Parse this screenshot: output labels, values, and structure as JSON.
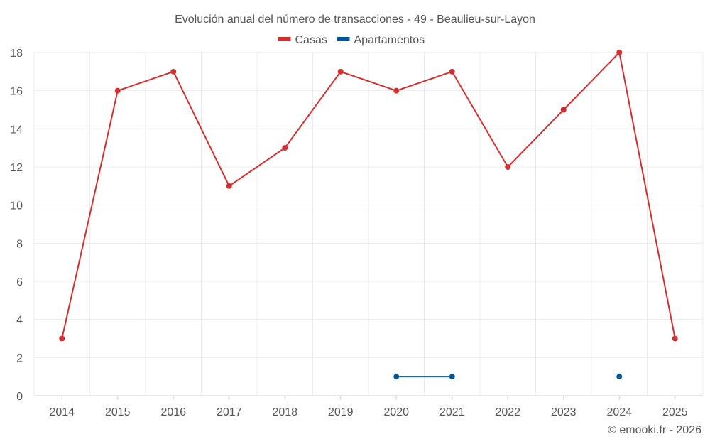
{
  "chart_data": {
    "type": "line",
    "title": "Evolución anual del número de transacciones - 49 - Beaulieu-sur-Layon",
    "categories": [
      "2014",
      "2015",
      "2016",
      "2017",
      "2018",
      "2019",
      "2020",
      "2021",
      "2022",
      "2023",
      "2024",
      "2025"
    ],
    "series": [
      {
        "name": "Casas",
        "color": "#d32f2f",
        "values": [
          3,
          16,
          17,
          11,
          13,
          17,
          16,
          17,
          12,
          15,
          18,
          3
        ]
      },
      {
        "name": "Apartamentos",
        "color": "#01579b",
        "values": [
          null,
          null,
          null,
          null,
          null,
          null,
          1,
          1,
          null,
          null,
          1,
          null
        ]
      }
    ],
    "ylim": [
      0,
      18
    ],
    "yticks": [
      0,
      2,
      4,
      6,
      8,
      10,
      12,
      14,
      16,
      18
    ],
    "grid": true,
    "legend": "top-center",
    "xlabel": "",
    "ylabel": ""
  },
  "footer": "© emooki.fr - 2026"
}
